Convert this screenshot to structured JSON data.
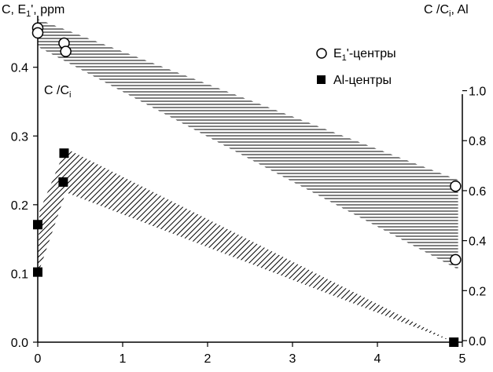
{
  "chart_data": {
    "type": "scatter",
    "y_left_label": {
      "main": "C, E",
      "sub": "1",
      "rest": "', ppm"
    },
    "y_right_label": {
      "main": "C /C",
      "sub": "i",
      "rest": ", Al"
    },
    "inner_label": {
      "main": "C /C",
      "sub": "i"
    },
    "x_ticks": [
      "0",
      "1",
      "2",
      "3",
      "4",
      "5"
    ],
    "y_left_ticks": [
      "0.0",
      "0.1",
      "0.2",
      "0.3",
      "0.4"
    ],
    "y_right_ticks": [
      "0.0",
      "0.2",
      "0.4",
      "0.6",
      "0.8",
      "1.0"
    ],
    "xlim": [
      0,
      5
    ],
    "ylim_left": [
      0,
      0.475
    ],
    "ylim_right": [
      -0.0062,
      1.3
    ],
    "grid": false,
    "legend_position": "top-right",
    "series": [
      {
        "name": "E1'-центры",
        "legend": {
          "main": "E",
          "sub": "1",
          "rest": "'-центры"
        },
        "marker": "open-circle",
        "axis": "left",
        "points": [
          [
            0.0,
            0.457
          ],
          [
            0.0,
            0.45
          ],
          [
            0.31,
            0.435
          ],
          [
            0.33,
            0.423
          ],
          [
            4.92,
            0.227
          ],
          [
            4.92,
            0.12
          ]
        ]
      },
      {
        "name": "Al-центры",
        "legend": {
          "main": "Al-центры",
          "sub": "",
          "rest": ""
        },
        "marker": "filled-square",
        "axis": "left",
        "points": [
          [
            0.0,
            0.171
          ],
          [
            0.0,
            0.102
          ],
          [
            0.31,
            0.275
          ],
          [
            0.3,
            0.233
          ],
          [
            4.9,
            0.0
          ]
        ]
      }
    ],
    "bands": [
      {
        "id": "e1-band",
        "axis": "left",
        "hatch": "horizontal",
        "polygon": [
          [
            0.0,
            0.47
          ],
          [
            4.95,
            0.236
          ],
          [
            4.95,
            0.106
          ],
          [
            0.0,
            0.43
          ]
        ]
      },
      {
        "id": "al-band",
        "axis": "left",
        "hatch": "diagonal",
        "polygon": [
          [
            0.0,
            0.108
          ],
          [
            0.02,
            0.19
          ],
          [
            0.33,
            0.282
          ],
          [
            4.9,
            0.0
          ],
          [
            0.33,
            0.218
          ],
          [
            0.0,
            0.098
          ]
        ]
      }
    ]
  }
}
